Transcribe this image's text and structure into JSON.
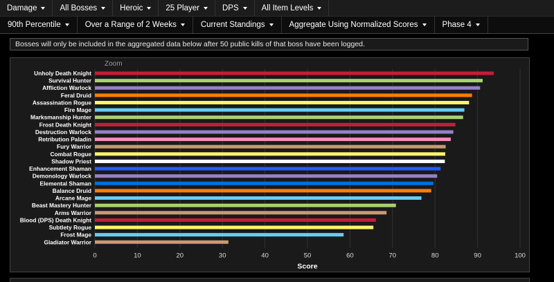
{
  "filters_row1": [
    {
      "label": "Damage"
    },
    {
      "label": "All Bosses"
    },
    {
      "label": "Heroic"
    },
    {
      "label": "25 Player"
    },
    {
      "label": "DPS"
    },
    {
      "label": "All Item Levels"
    }
  ],
  "filters_row2": [
    {
      "label": "90th Percentile"
    },
    {
      "label": "Over a Range of 2 Weeks"
    },
    {
      "label": "Current Standings"
    },
    {
      "label": "Aggregate Using Normalized Scores"
    },
    {
      "label": "Phase 4"
    }
  ],
  "notice": "Bosses will only be included in the aggregated data below after 50 public kills of that boss have been logged.",
  "zoom_label": "Zoom",
  "chart_data": {
    "type": "bar",
    "orientation": "horizontal",
    "xlabel": "Score",
    "xlim": [
      0,
      100
    ],
    "xticks": [
      0,
      10,
      20,
      30,
      40,
      50,
      60,
      70,
      80,
      90,
      100
    ],
    "grid": true,
    "categories": [
      "Unholy Death Knight",
      "Survival Hunter",
      "Affliction Warlock",
      "Feral Druid",
      "Assassination Rogue",
      "Fire Mage",
      "Marksmanship Hunter",
      "Frost Death Knight",
      "Destruction Warlock",
      "Retribution Paladin",
      "Fury Warrior",
      "Combat Rogue",
      "Shadow Priest",
      "Enhancement Shaman",
      "Demonology Warlock",
      "Elemental Shaman",
      "Balance Druid",
      "Arcane Mage",
      "Beast Mastery Hunter",
      "Arms Warrior",
      "Blood (DPS) Death Knight",
      "Subtlety Rogue",
      "Frost Mage",
      "Gladiator Warrior"
    ],
    "values": [
      93.8,
      91.2,
      90.6,
      88.7,
      88.0,
      86.9,
      86.6,
      84.8,
      84.3,
      83.7,
      82.5,
      82.4,
      82.3,
      81.3,
      80.5,
      79.6,
      79.1,
      76.8,
      70.8,
      68.6,
      66.1,
      65.5,
      58.5,
      31.4
    ],
    "colors": [
      "#c41e3a",
      "#a9d271",
      "#9482c9",
      "#ff7d0a",
      "#fff569",
      "#69ccf0",
      "#a9d271",
      "#c41e3a",
      "#9482c9",
      "#f58cba",
      "#c79c6e",
      "#fff569",
      "#ffffff",
      "#2459ff",
      "#9482c9",
      "#0070de",
      "#ff7d0a",
      "#69ccf0",
      "#a9d271",
      "#c79c6e",
      "#c41e3a",
      "#fff569",
      "#69ccf0",
      "#c79c6e"
    ]
  }
}
